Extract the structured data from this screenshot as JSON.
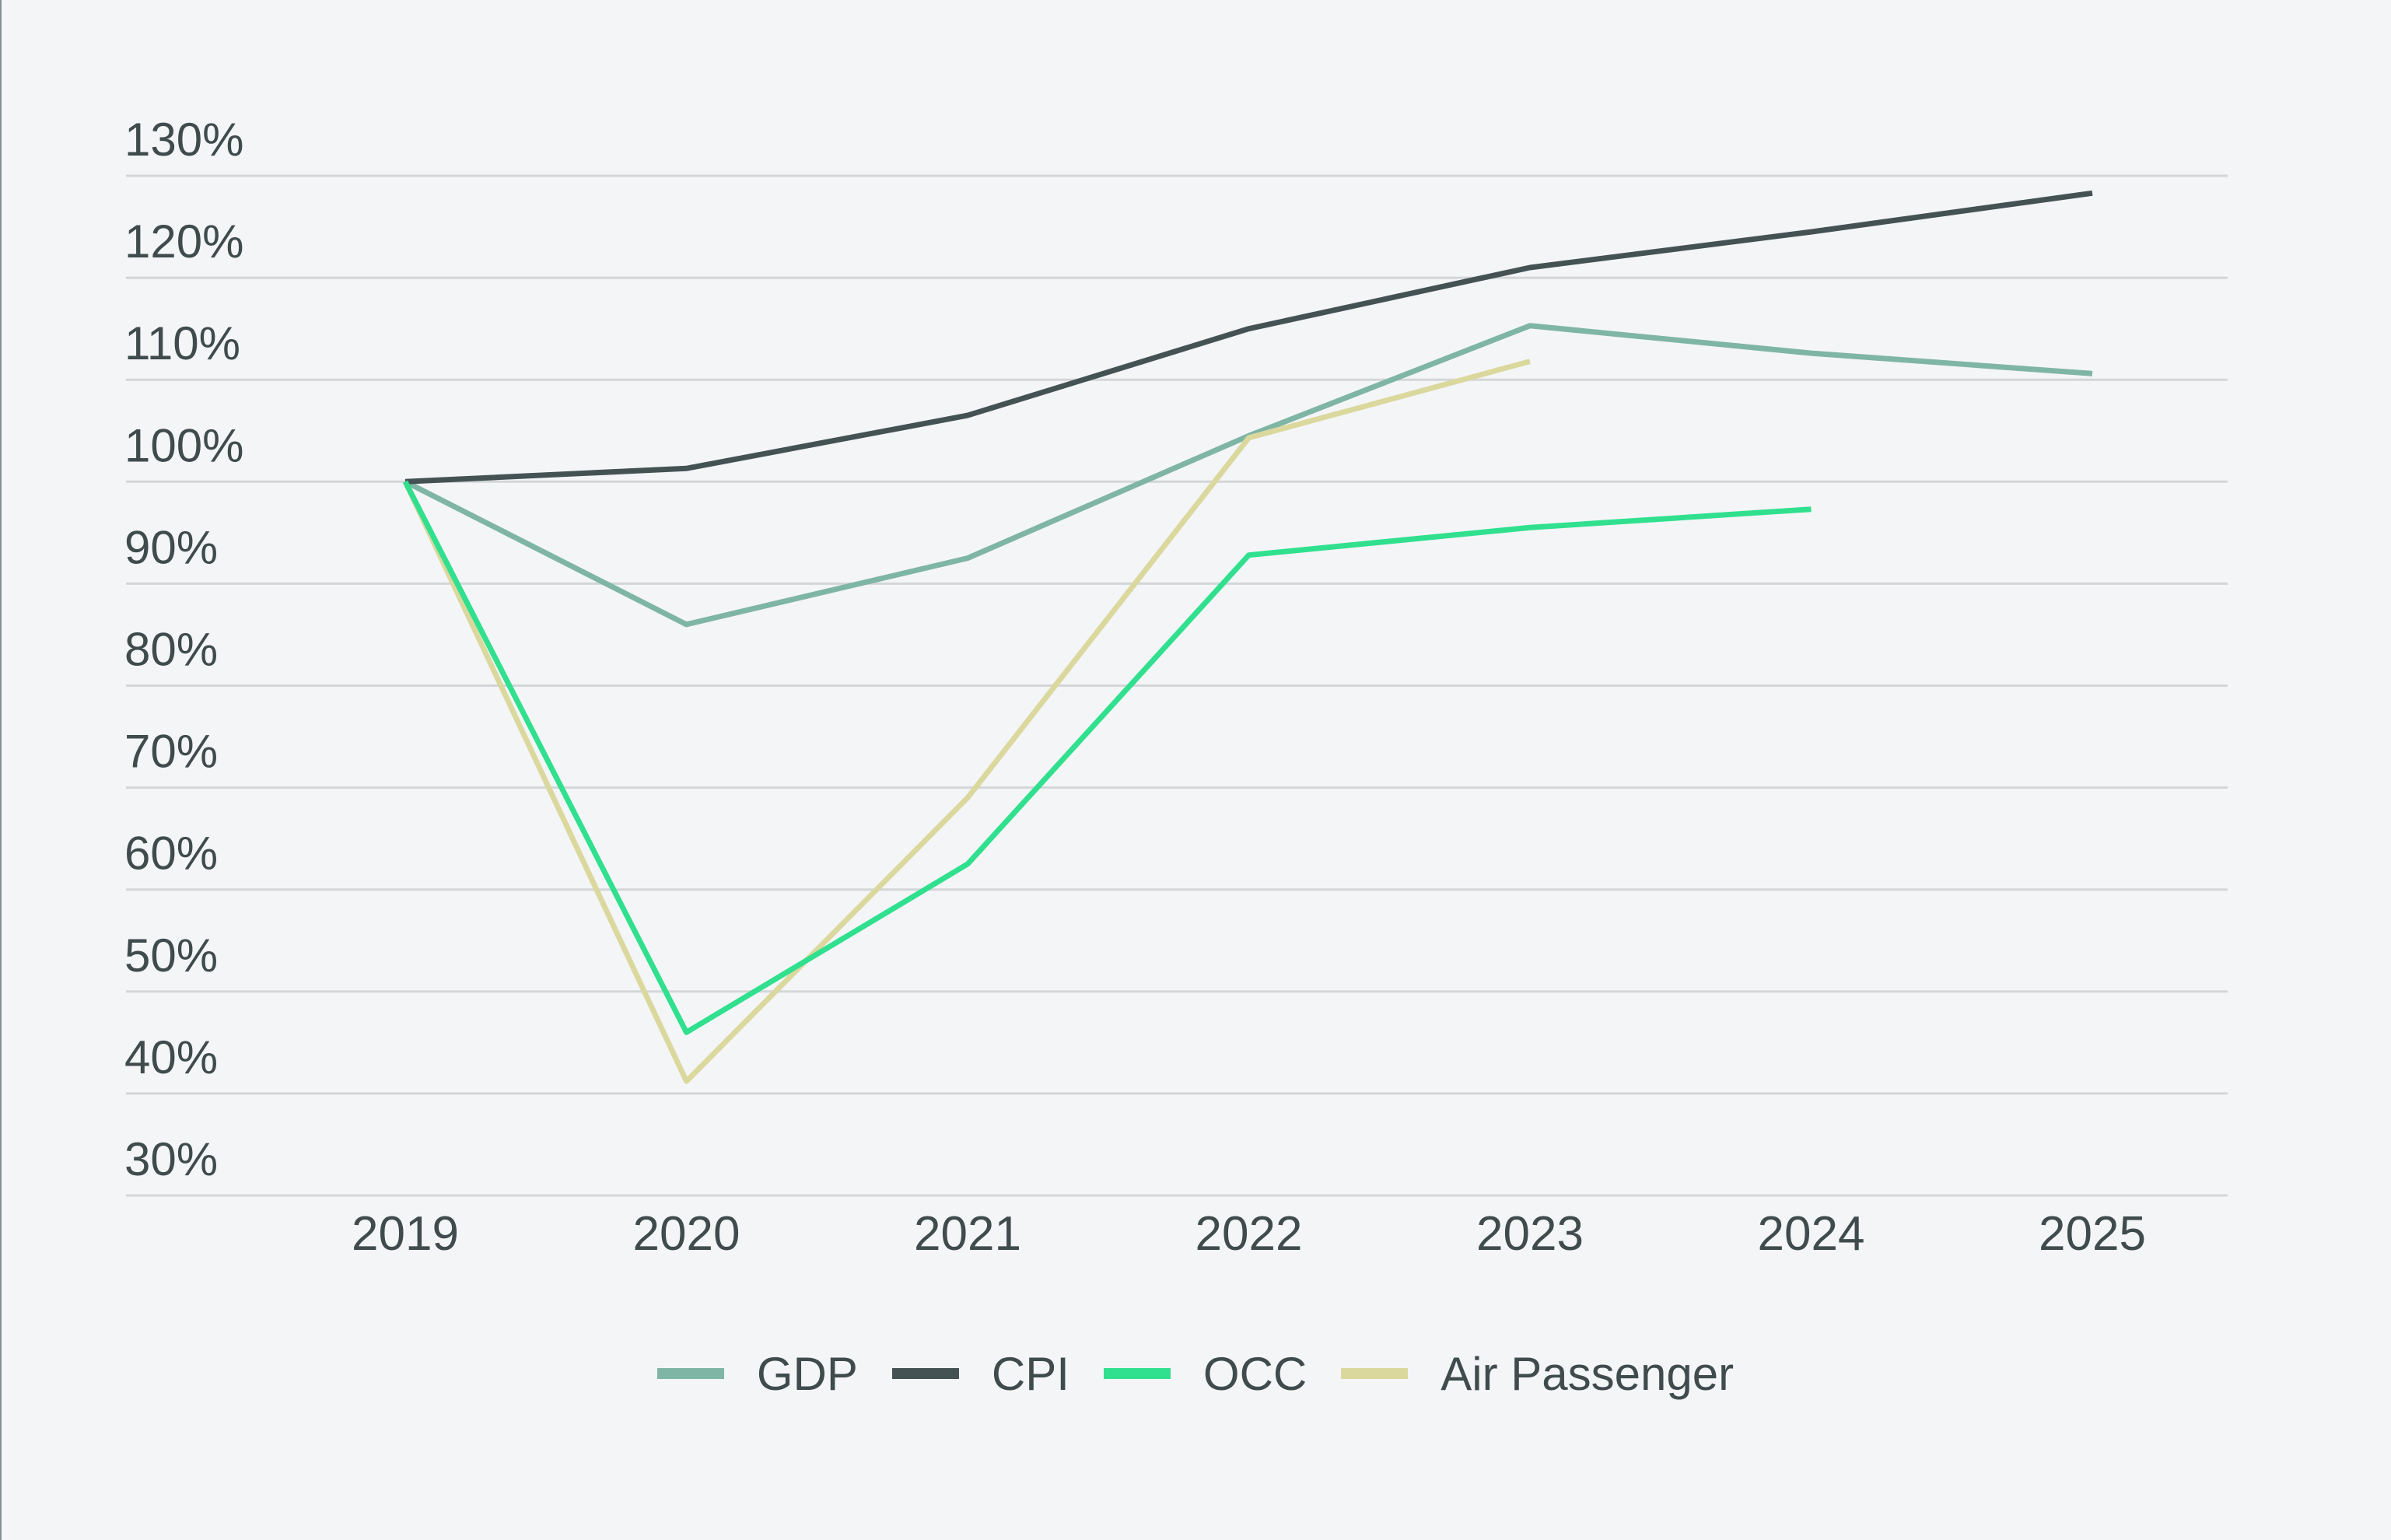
{
  "chart_data": {
    "type": "line",
    "x": [
      "2019",
      "2020",
      "2021",
      "2022",
      "2023",
      "2024",
      "2025"
    ],
    "y_ticks": [
      "130%",
      "120%",
      "110%",
      "100%",
      "90%",
      "80%",
      "70%",
      "60%",
      "50%",
      "40%",
      "30%"
    ],
    "ylim": [
      30,
      130
    ],
    "grid": true,
    "legend_position": "bottom-center",
    "series": [
      {
        "name": "GDP",
        "color": "#7fb5a4",
        "values": [
          100,
          86,
          92.5,
          104.5,
          115.3,
          112.6,
          110.6
        ]
      },
      {
        "name": "CPI",
        "color": "#445253",
        "values": [
          100,
          101.3,
          106.5,
          115,
          121,
          124.5,
          128.3
        ]
      },
      {
        "name": "OCC",
        "color": "#30e08e",
        "values": [
          100,
          46,
          62.5,
          92.8,
          95.5,
          97.3,
          null
        ]
      },
      {
        "name": "Air Passenger",
        "color": "#dbd89e",
        "values": [
          100,
          41.2,
          69,
          104.3,
          111.8,
          null,
          null
        ]
      }
    ]
  }
}
